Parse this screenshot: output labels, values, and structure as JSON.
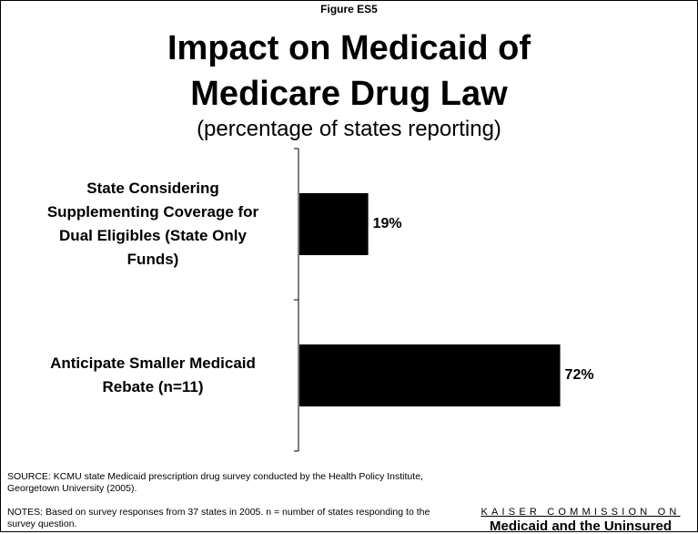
{
  "figure_label": "Figure ES5",
  "title_line1": "Impact on Medicaid of",
  "title_line2": "Medicare Drug Law",
  "subtitle": "(percentage of states reporting)",
  "chart_data": {
    "type": "bar",
    "orientation": "horizontal",
    "categories": [
      "State Considering Supplementing Coverage for Dual Eligibles (State Only Funds)",
      "Anticipate Smaller Medicaid Rebate (n=11)"
    ],
    "values": [
      19,
      72
    ],
    "value_labels": [
      "19%",
      "72%"
    ],
    "xlim": [
      0,
      100
    ],
    "bar_color": "#000000",
    "grid": false,
    "legend": "none"
  },
  "category_label_lines": [
    [
      "State Considering",
      "Supplementing Coverage for",
      "Dual Eligibles (State Only",
      "Funds)"
    ],
    [
      "Anticipate Smaller Medicaid",
      "Rebate (n=11)"
    ]
  ],
  "source": "SOURCE: KCMU state Medicaid prescription drug survey conducted by the Health Policy Institute, Georgetown University (2005).",
  "notes": "NOTES: Based on survey responses from 37 states in 2005.  n = number of states responding to the survey question.",
  "branding": {
    "line1": "KAISER COMMISSION ON",
    "line2": "Medicaid and the Uninsured"
  }
}
